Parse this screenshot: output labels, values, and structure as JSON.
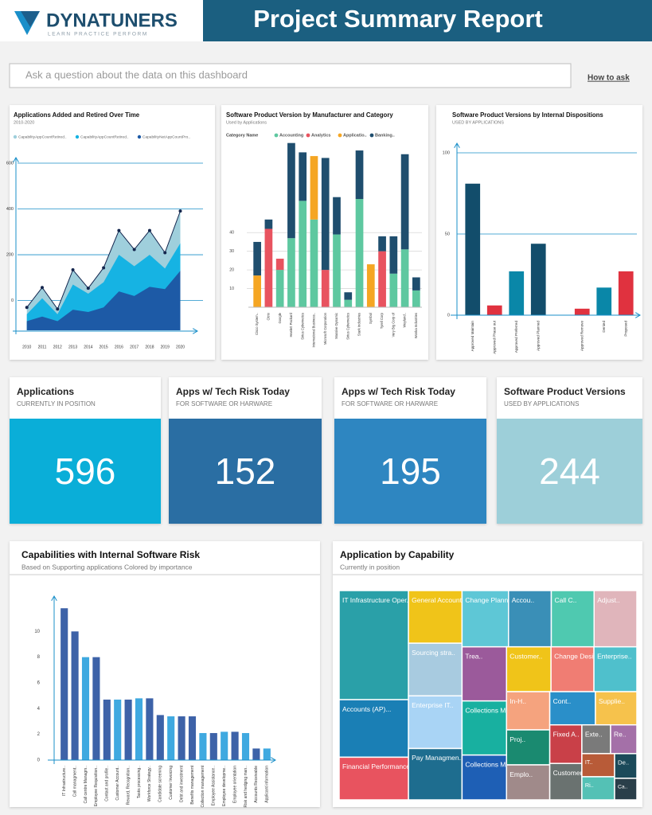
{
  "header": {
    "brand": "DYNATUNERS",
    "tagline": "LEARN PRACTICE PERFORM",
    "title": "Project Summary Report"
  },
  "search": {
    "placeholder": "Ask a question about the data on this dashboard",
    "help": "How to ask"
  },
  "kpis": [
    {
      "title": "Applications",
      "subtitle": "CURRENTLY IN POSITION",
      "value": 596,
      "color": "#0aaed8"
    },
    {
      "title": "Apps w/ Tech Risk Today",
      "subtitle": "FOR SOFTWARE OR HARWARE",
      "value": 152,
      "color": "#2a6ea3"
    },
    {
      "title": "Apps w/ Tech Risk Today",
      "subtitle": "FOR SOFTWARE OR HARWARE",
      "value": 195,
      "color": "#2e86c1"
    },
    {
      "title": "Software Product Versions",
      "subtitle": "USED BY APPLICATIONS",
      "value": 244,
      "color": "#9dcfd9"
    }
  ],
  "chart_data": [
    {
      "type": "area",
      "title": "Applications Added and Retired Over Time",
      "subtitle": "2010-2020",
      "x": [
        2010,
        2011,
        2012,
        2013,
        2014,
        2015,
        2016,
        2017,
        2018,
        2019,
        2020
      ],
      "xlim": [
        2009.6,
        2020.7
      ],
      "ylim": [
        -130,
        600
      ],
      "yticks": [
        0,
        200,
        400,
        600
      ],
      "grid": true,
      "series": [
        {
          "name": "CapabilityAppCountRetired..",
          "color": "#9fcfdc",
          "values": [
            -30,
            57,
            -37,
            134,
            54,
            143,
            306,
            223,
            306,
            209,
            391
          ]
        },
        {
          "name": "CapabilityAppCountRetired..",
          "color": "#16b3e3",
          "values": [
            -60,
            10,
            -60,
            70,
            30,
            80,
            200,
            150,
            200,
            140,
            250
          ]
        },
        {
          "name": "CapabilityNetAppCountPro..",
          "color": "#1d5aa6",
          "values": [
            -90,
            -70,
            -90,
            -40,
            -50,
            -30,
            40,
            20,
            60,
            50,
            130
          ]
        }
      ]
    },
    {
      "type": "stacked_bar",
      "title": "Software Product Version by Manufacturer and Category",
      "subtitle": "Used by Applications",
      "legend_title": "Category Name",
      "categories": [
        "Cisco System..",
        "Citrix",
        "Google",
        "Hewlett Packard",
        "Sirius Cybernetics",
        "International Business..",
        "Microsoft Corporation",
        "Massive Dynamic",
        "Sirius Cybernetics",
        "Stark Industries",
        "Symbol",
        "Tyrell Corp",
        "Very Big Corp of",
        "Weyland..",
        "Wonka Industries"
      ],
      "ylim": [
        0,
        90
      ],
      "yticks": [
        10,
        20,
        30,
        40
      ],
      "grid": true,
      "series": [
        {
          "name": "Accounting",
          "color": "#5ec8a0",
          "values": [
            null,
            null,
            20,
            37,
            57,
            47,
            null,
            39,
            4,
            58,
            null,
            null,
            18,
            31,
            9
          ]
        },
        {
          "name": "Analytics",
          "color": "#e8535f",
          "values": [
            null,
            42,
            6,
            null,
            null,
            null,
            20,
            null,
            null,
            null,
            null,
            30,
            null,
            null,
            null
          ]
        },
        {
          "name": "Applicatio..",
          "color": "#f5a623",
          "values": [
            17,
            null,
            null,
            null,
            null,
            34,
            null,
            null,
            null,
            null,
            23,
            null,
            null,
            null,
            null
          ]
        },
        {
          "name": "Banking..",
          "color": "#1f4e6e",
          "values": [
            18,
            5,
            null,
            51,
            26,
            null,
            60,
            20,
            4,
            26,
            null,
            8,
            20,
            51,
            7
          ]
        }
      ]
    },
    {
      "type": "bar",
      "title": "Software Product Versions by Internal Dispositions",
      "subtitle": "USED BY APPLICATIONS",
      "categories": [
        "Approved Maintain",
        "Approved Phase out",
        "Approved Preferred",
        "Approved Planned",
        null,
        "Approved Remove",
        "Denied",
        "Proposed"
      ],
      "values": [
        81,
        6,
        27,
        44,
        null,
        4,
        17,
        27
      ],
      "colors": [
        "#124d6b",
        "#e0323f",
        "#0a87a8",
        "#124d6b",
        null,
        "#e0323f",
        "#0a87a8",
        "#e0323f"
      ],
      "ylim": [
        0,
        100
      ],
      "yticks": [
        0,
        50,
        100
      ],
      "grid": true
    },
    {
      "type": "bar",
      "title": "Capabilities with Internal Software Risk",
      "subtitle": "Based on Supporting applications Colored by importance",
      "categories": [
        "IT Infrastructure..",
        "Call managment..",
        "Call centre Managm..",
        "Employee Requisition..",
        "Contact and profile..",
        "Customer Account..",
        "Reward, Recognition..",
        "Tasks processing..",
        "Workforce Strategy..",
        "Candidate screening",
        "Customer Invoicing",
        "Debt and investment",
        "Benefits management",
        "Collection management",
        "Employee Assistance..",
        "Employee developme..",
        "Employee orientation",
        "Risk and hedging man..",
        "Accounts Receivable",
        "Applicant information"
      ],
      "values": [
        11.8,
        10,
        8,
        8,
        4.7,
        4.7,
        4.7,
        4.8,
        4.8,
        3.5,
        3.4,
        3.4,
        3.4,
        2.1,
        2.1,
        2.2,
        2.2,
        2.1,
        0.9,
        0.9
      ],
      "colors": [
        "#3d62a8",
        "#3d62a8",
        "#3fa9e0",
        "#3d62a8",
        "#3d62a8",
        "#3fa9e0",
        "#3d62a8",
        "#3fa9e0",
        "#3d62a8",
        "#3d62a8",
        "#3fa9e0",
        "#3d62a8",
        "#3d62a8",
        "#3fa9e0",
        "#3d62a8",
        "#3fa9e0",
        "#3d62a8",
        "#3fa9e0",
        "#3d62a8",
        "#3fa9e0"
      ],
      "ylim": [
        0,
        12
      ],
      "yticks": [
        0,
        2,
        4,
        6,
        8,
        10
      ],
      "grid": false
    },
    {
      "type": "treemap",
      "title": "Application by Capability",
      "subtitle": "Currently in position",
      "categories": [
        "IT Infrastructure Oper..",
        "Accounts (AP)...",
        "Financial Performance..",
        "General Accounts",
        "Sourcing stra..",
        "Enterprise IT..",
        "Pay Managmen..",
        "Change Planni..",
        "Accou..",
        "Call C..",
        "Adjust..",
        "Trea..",
        "Collections Ma..",
        "Collections Ma..",
        "Customer..",
        "Change Desi..",
        "Enterprise..",
        "In-H..",
        "Proj..",
        "Emplo..",
        "Cont..",
        "Supplie..",
        "Fixed A..",
        "Customer..",
        "Exte..",
        "Re..",
        "IT..",
        "Ri..",
        "De..",
        "Ca.."
      ],
      "values": [
        110,
        58,
        43,
        41,
        41,
        41,
        40,
        38,
        35,
        35,
        35,
        35,
        35,
        29,
        29,
        28,
        28,
        24,
        22,
        22,
        22,
        20,
        18,
        17,
        12,
        11,
        11,
        11,
        8,
        7
      ],
      "colors": [
        "#2aa0a8",
        "#1a7fb5",
        "#e8535f",
        "#f0c419",
        "#a8cbe0",
        "#a9d4f5",
        "#1e6d8f",
        "#5ec7d6",
        "#3a8fb7",
        "#4fc9b0",
        "#e0b5bb",
        "#9b5a9b",
        "#18b0a0",
        "#1e5fb5",
        "#f0c419",
        "#f07d73",
        "#4fc0cc",
        "#f5a37e",
        "#1a8a70",
        "#a08a8a",
        "#2a8fc9",
        "#f6c24c",
        "#c94048",
        "#6a7270",
        "#7a7a7a",
        "#a470a8",
        "#b85b38",
        "#54c1b5",
        "#1b4a5a",
        "#2a3f4a"
      ]
    }
  ]
}
